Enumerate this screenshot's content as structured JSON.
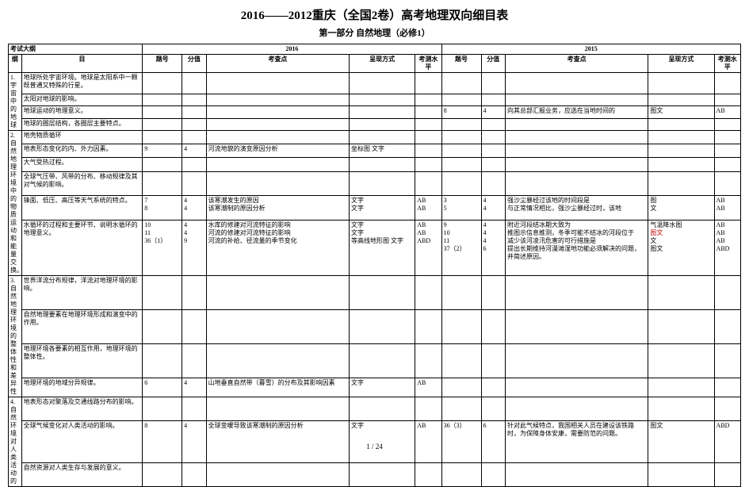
{
  "title": "2016——2012重庆（全国2卷）高考地理双向细目表",
  "subtitle": "第一部分  自然地理（必修1）",
  "header": {
    "kd": "考试大纲",
    "gang": "纲",
    "mu": "目",
    "y2016": "2016",
    "y2015": "2015",
    "tihao": "题号",
    "fenzhi": "分值",
    "kaochadian": "考查点",
    "chengxian": "呈现方式",
    "kaocha_shuiping": "考测水平"
  },
  "sections": [
    {
      "gang": "1.宇宙中的地球",
      "rows": [
        {
          "mu": "地球所处宇宙环境。地球是太阳系中一颗既普通又特殊的行星。"
        },
        {
          "mu": "太阳对地球的影响。"
        },
        {
          "mu": "地球运动的地理意义。",
          "y15": {
            "tn": "8",
            "fv": "4",
            "kp": "向其总部汇报业务，应选在当地时间的",
            "cx": "图文",
            "lvl": "AB"
          }
        },
        {
          "mu": "地球的圈层结构，各圈层主要特点。"
        }
      ]
    },
    {
      "gang": "2.自然地理环境中的物质运动和能量交换。",
      "rows": [
        {
          "mu": "地壳物质循环"
        },
        {
          "mu": "地表形态变化的内、外力因素。",
          "y16": {
            "tn": "9",
            "fv": "4",
            "kp": "河流地貌的演变原因分析",
            "cx": "坐标图 文字",
            "lvl": ""
          }
        },
        {
          "mu": "大气受热过程。"
        },
        {
          "mu": "全球气压带、风带的分布、移动规律及其对气候的影响。"
        },
        {
          "mu": "锋面、低压、高压等天气系统的特点。",
          "y16": {
            "tn": "7\n8",
            "fv": "4\n4",
            "kp": "该寒潮发生的原因\n该寒潮制的原因分析",
            "cx": "文字\n文字",
            "lvl": "AB\nAB"
          },
          "y15": {
            "tn": "3\n5",
            "fv": "4\n4",
            "kp": "强沙尘暴经过该地的时间段是\n与正常情况相比，强沙尘暴经过时，该地",
            "cx": "图\n文",
            "lvl": "AB\nAB"
          }
        },
        {
          "mu": "水循环的过程和主要环节、说明水循环的地理意义。",
          "y16": {
            "tn": "10\n11\n36（1）",
            "fv": "4\n4\n9",
            "kp": "水库的修建对河流特征的影响\n河流的修建对河流特征的影响\n河流的补给、径流量的季节变化",
            "cx": "文字\n文字\n等高线地形图 文字",
            "lvl": "AB\nAB\nABD"
          },
          "y15": {
            "tn": "9\n10\n11\n37（2）",
            "fv": "4\n4\n4\n6",
            "kp": "附近河段结冰期大致为\n推图示信息推测，冬季可能不结冰的河段位于\n减少该河凌汛危害的可行措施是\n提出长期维持河漫滩湿地功能必须解决的问题，并简述原因。",
            "cx": "气温降水图\n图文\n文\n图文",
            "lvl": "AB\nAB\nAB\nABD",
            "redcx": true
          }
        }
      ]
    },
    {
      "gang": "3.自然地理环境的整体性和差异性",
      "rows": [
        {
          "mu": "世界洋流分布规律，洋流对地理环境的影响。"
        },
        {
          "mu": "自然地理要素在地理环境形成和演变中的作用。"
        },
        {
          "mu": "地理环境各要素的相互作用，地理环境的整体性。"
        },
        {
          "mu": "地理环境的地域分异规律。",
          "y16": {
            "tn": "6",
            "fv": "4",
            "kp": "山地垂直自然带（暮雪）的分布及其影响因素",
            "cx": "文字",
            "lvl": "AB"
          }
        }
      ]
    },
    {
      "gang": "4.自然环境对人类活动的",
      "rows": [
        {
          "mu": "地表形态对聚落及交通线路分布的影响。"
        },
        {
          "mu": "全球气候变化对人类活动的影响。",
          "y16": {
            "tn": "8",
            "fv": "4",
            "kp": "全球变暖导致该寒潮制的原因分析",
            "cx": "文字",
            "lvl": "AB"
          },
          "y15": {
            "tn": "36（3）",
            "fv": "6",
            "kp": "针对此气候特点，我国相关人员在建设该铁路时，为保障身体安康，需要防范的问题。",
            "cx": "图文",
            "lvl": "ABD"
          }
        },
        {
          "mu": "自然资源对人类生存与发展的意义。"
        }
      ]
    }
  ],
  "footer": "1 / 24"
}
